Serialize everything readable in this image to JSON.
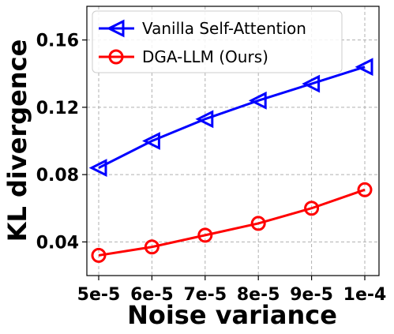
{
  "chart_data": {
    "type": "line",
    "title": "",
    "xlabel": "Noise variance",
    "ylabel": "KL divergence",
    "categories": [
      "5e-5",
      "6e-5",
      "7e-5",
      "8e-5",
      "9e-5",
      "1e-4"
    ],
    "ylim": [
      0.02,
      0.18
    ],
    "yticks": [
      0.04,
      0.08,
      0.12,
      0.16
    ],
    "ytick_labels": [
      "0.04",
      "0.08",
      "0.12",
      "0.16"
    ],
    "grid": true,
    "legend_position": "top-left",
    "series": [
      {
        "name": "Vanilla Self-Attention",
        "color": "#0000ff",
        "marker": "left-triangle",
        "values": [
          0.084,
          0.1,
          0.113,
          0.124,
          0.134,
          0.144
        ]
      },
      {
        "name": "DGA-LLM (Ours)",
        "color": "#ff0000",
        "marker": "circle",
        "values": [
          0.032,
          0.037,
          0.044,
          0.051,
          0.06,
          0.071
        ]
      }
    ]
  }
}
